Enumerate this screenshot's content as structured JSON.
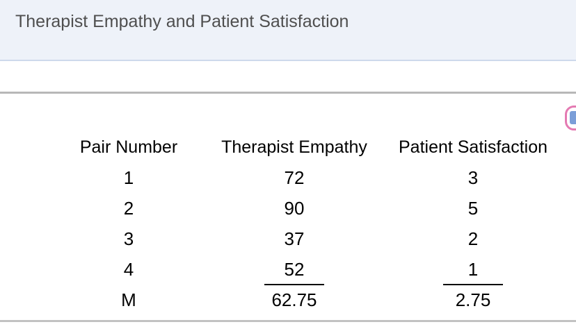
{
  "caption": {
    "title": "Therapist Empathy and Patient Satisfaction"
  },
  "table": {
    "columns": [
      "Pair Number",
      "Therapist Empathy",
      "Patient Satisfaction"
    ],
    "rows": [
      [
        "1",
        "72",
        "3"
      ],
      [
        "2",
        "90",
        "5"
      ],
      [
        "3",
        "37",
        "2"
      ],
      [
        "4",
        "52",
        "1"
      ],
      [
        "M",
        "62.75",
        "2.75"
      ]
    ],
    "mean_row_label": "M"
  },
  "colors": {
    "caption_band_bg": "#eef2f9",
    "caption_band_border": "#cdd9ec",
    "caption_text": "#4f4f4f",
    "rule_gray": "#b7b7b7",
    "badge_pink": "#e47ab2",
    "badge_blue": "#7b9ed8",
    "table_text": "#000000"
  }
}
